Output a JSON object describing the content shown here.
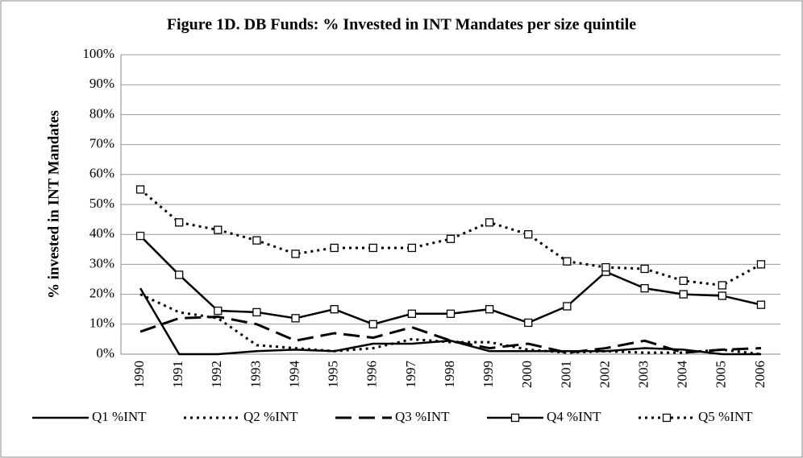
{
  "chart_data": {
    "type": "line",
    "title": "Figure 1D. DB Funds: % Invested in INT Mandates per size quintile",
    "y_label": "% invested in INT Mandates",
    "categories": [
      "1990",
      "1991",
      "1992",
      "1993",
      "1994",
      "1995",
      "1996",
      "1997",
      "1998",
      "1999",
      "2000",
      "2001",
      "2002",
      "2003",
      "2004",
      "2005",
      "2006"
    ],
    "series": [
      {
        "name": "Q1 %INT",
        "color": "#000000",
        "line_style": "solid",
        "values": [
          22,
          0,
          0,
          1,
          1.5,
          1,
          3.5,
          3.5,
          4.5,
          1,
          1,
          1,
          1,
          2,
          1.5,
          0,
          0
        ]
      },
      {
        "name": "Q2 %INT",
        "color": "#000000",
        "line_style": "dotted",
        "values": [
          20,
          14,
          12,
          3,
          2,
          1,
          2,
          5,
          4,
          4,
          1.5,
          0.5,
          1,
          0.5,
          0.5,
          1.5,
          0
        ]
      },
      {
        "name": "Q3 %INT",
        "color": "#000000",
        "line_style": "dashed",
        "values": [
          7.5,
          12,
          12.5,
          10,
          4.5,
          7,
          5.5,
          9,
          4.5,
          2,
          3.5,
          0.5,
          2,
          4.5,
          0.5,
          1.5,
          2
        ]
      },
      {
        "name": "Q4 %INT",
        "color": "#000000",
        "line_style": "solid",
        "marker": "square",
        "values": [
          39.5,
          26.5,
          14.5,
          14,
          12,
          15,
          10,
          13.5,
          13.5,
          15,
          10.5,
          16,
          27.5,
          22,
          20,
          19.5,
          16.5
        ]
      },
      {
        "name": "Q5 %INT",
        "color": "#000000",
        "line_style": "dotted",
        "marker": "square",
        "values": [
          55,
          44,
          41.5,
          38,
          33.5,
          35.5,
          35.5,
          35.5,
          38.5,
          44,
          40,
          31,
          29,
          28.5,
          24.5,
          23,
          30
        ]
      }
    ],
    "ylim": [
      0,
      100
    ],
    "yticks": [
      {
        "value": 0,
        "label": "0%"
      },
      {
        "value": 10,
        "label": "10%"
      },
      {
        "value": 20,
        "label": "20%"
      },
      {
        "value": 30,
        "label": "30%"
      },
      {
        "value": 40,
        "label": "40%"
      },
      {
        "value": 50,
        "label": "50%"
      },
      {
        "value": 60,
        "label": "60%"
      },
      {
        "value": 70,
        "label": "70%"
      },
      {
        "value": 80,
        "label": "80%"
      },
      {
        "value": 90,
        "label": "90%"
      },
      {
        "value": 100,
        "label": "100%"
      }
    ],
    "grid": true,
    "legend": "bottom"
  }
}
